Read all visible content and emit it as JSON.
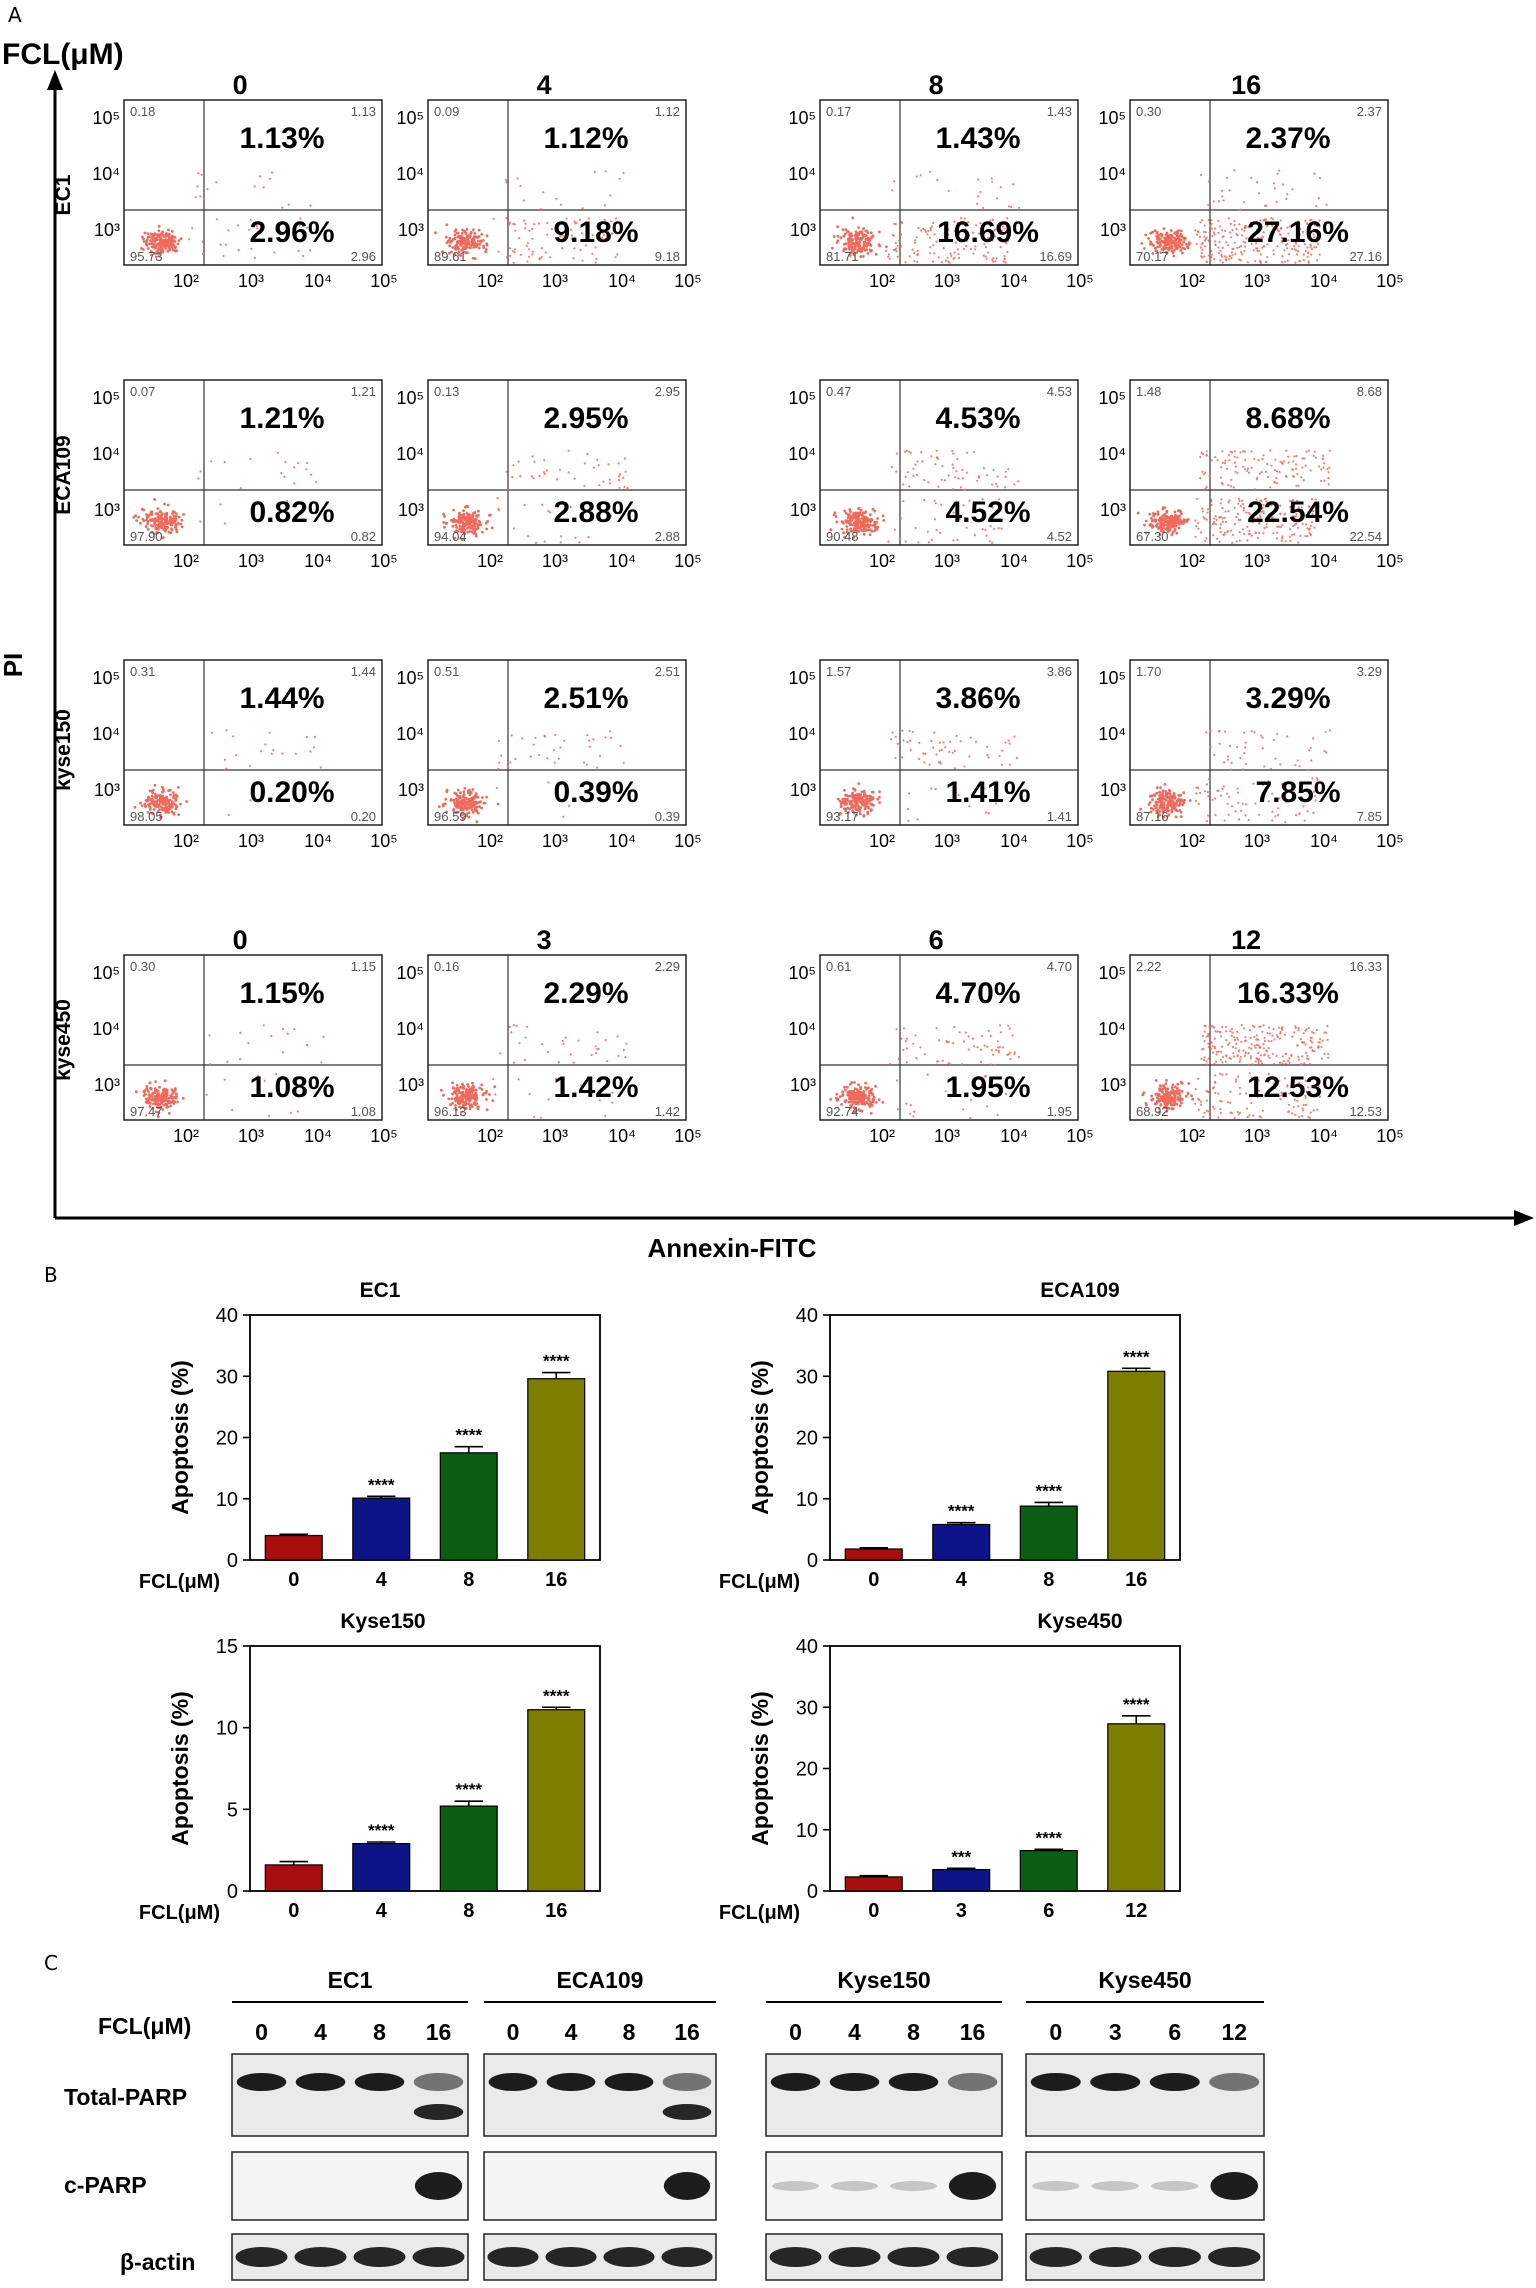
{
  "panels": {
    "a": "A",
    "b": "B",
    "c": "C"
  },
  "colors": {
    "dots": "#f06a5c",
    "bar0": "#a80e0e",
    "bar1": "#0c1487",
    "bar2": "#0b5d12",
    "bar3": "#7d7d00",
    "axis": "#000000"
  },
  "panel_a": {
    "top_label": "FCL(μM)",
    "y_axis_label": "PI",
    "x_axis_label": "Annexin-FITC",
    "tick_labels": [
      "10²",
      "10³",
      "10⁴",
      "10⁵"
    ],
    "rows": [
      {
        "cell": "EC1",
        "concentrations": [
          "0",
          "4",
          "8",
          "16"
        ],
        "plots": [
          {
            "ul": "0.18",
            "ur": "1.13",
            "ll": "95.73",
            "lr": "2.96",
            "upper": "1.13%",
            "lower": "2.96%"
          },
          {
            "ul": "0.09",
            "ur": "1.12",
            "ll": "89.61",
            "lr": "9.18",
            "upper": "1.12%",
            "lower": "9.18%"
          },
          {
            "ul": "0.17",
            "ur": "1.43",
            "ll": "81.71",
            "lr": "16.69",
            "upper": "1.43%",
            "lower": "16.69%"
          },
          {
            "ul": "0.30",
            "ur": "2.37",
            "ll": "70.17",
            "lr": "27.16",
            "upper": "2.37%",
            "lower": "27.16%"
          }
        ]
      },
      {
        "cell": "ECA109",
        "concentrations": [
          "",
          "",
          "",
          ""
        ],
        "plots": [
          {
            "ul": "0.07",
            "ur": "1.21",
            "ll": "97.90",
            "lr": "0.82",
            "upper": "1.21%",
            "lower": "0.82%"
          },
          {
            "ul": "0.13",
            "ur": "2.95",
            "ll": "94.04",
            "lr": "2.88",
            "upper": "2.95%",
            "lower": "2.88%"
          },
          {
            "ul": "0.47",
            "ur": "4.53",
            "ll": "90.48",
            "lr": "4.52",
            "upper": "4.53%",
            "lower": "4.52%"
          },
          {
            "ul": "1.48",
            "ur": "8.68",
            "ll": "67.30",
            "lr": "22.54",
            "upper": "8.68%",
            "lower": "22.54%"
          }
        ]
      },
      {
        "cell": "kyse150",
        "concentrations": [
          "",
          "",
          "",
          ""
        ],
        "plots": [
          {
            "ul": "0.31",
            "ur": "1.44",
            "ll": "98.05",
            "lr": "0.20",
            "upper": "1.44%",
            "lower": "0.20%"
          },
          {
            "ul": "0.51",
            "ur": "2.51",
            "ll": "96.59",
            "lr": "0.39",
            "upper": "2.51%",
            "lower": "0.39%"
          },
          {
            "ul": "1.57",
            "ur": "3.86",
            "ll": "93.17",
            "lr": "1.41",
            "upper": "3.86%",
            "lower": "1.41%"
          },
          {
            "ul": "1.70",
            "ur": "3.29",
            "ll": "87.16",
            "lr": "7.85",
            "upper": "3.29%",
            "lower": "7.85%"
          }
        ]
      },
      {
        "cell": "kyse450",
        "concentrations": [
          "0",
          "3",
          "6",
          "12"
        ],
        "plots": [
          {
            "ul": "0.30",
            "ur": "1.15",
            "ll": "97.47",
            "lr": "1.08",
            "upper": "1.15%",
            "lower": "1.08%"
          },
          {
            "ul": "0.16",
            "ur": "2.29",
            "ll": "96.13",
            "lr": "1.42",
            "upper": "2.29%",
            "lower": "1.42%"
          },
          {
            "ul": "0.61",
            "ur": "4.70",
            "ll": "92.74",
            "lr": "1.95",
            "upper": "4.70%",
            "lower": "1.95%"
          },
          {
            "ul": "2.22",
            "ur": "16.33",
            "ll": "68.92",
            "lr": "12.53",
            "upper": "16.33%",
            "lower": "12.53%"
          }
        ]
      }
    ]
  },
  "chart_data": [
    {
      "type": "bar",
      "title": "EC1",
      "categories": [
        "0",
        "4",
        "8",
        "16"
      ],
      "values": [
        4.0,
        10.1,
        17.5,
        29.6
      ],
      "errors": [
        0.2,
        0.3,
        1.0,
        1.0
      ],
      "significance": [
        "",
        "****",
        "****",
        "****"
      ],
      "xlabel": "FCL(μM)",
      "ylabel": "Apoptosis (%)",
      "ylim": [
        0,
        40
      ],
      "yticks": [
        0,
        10,
        20,
        30,
        40
      ]
    },
    {
      "type": "bar",
      "title": "ECA109",
      "categories": [
        "0",
        "4",
        "8",
        "16"
      ],
      "values": [
        1.8,
        5.8,
        8.8,
        30.8
      ],
      "errors": [
        0.2,
        0.3,
        0.6,
        0.5
      ],
      "significance": [
        "",
        "****",
        "****",
        "****"
      ],
      "xlabel": "FCL(μM)",
      "ylabel": "Apoptosis (%)",
      "ylim": [
        0,
        40
      ],
      "yticks": [
        0,
        10,
        20,
        30,
        40
      ]
    },
    {
      "type": "bar",
      "title": "Kyse150",
      "categories": [
        "0",
        "4",
        "8",
        "16"
      ],
      "values": [
        1.6,
        2.9,
        5.2,
        11.1
      ],
      "errors": [
        0.2,
        0.1,
        0.3,
        0.15
      ],
      "significance": [
        "",
        "****",
        "****",
        "****"
      ],
      "xlabel": "FCL(μM)",
      "ylabel": "Apoptosis (%)",
      "ylim": [
        0,
        15
      ],
      "yticks": [
        0,
        5,
        10,
        15
      ]
    },
    {
      "type": "bar",
      "title": "Kyse450",
      "categories": [
        "0",
        "3",
        "6",
        "12"
      ],
      "values": [
        2.3,
        3.5,
        6.6,
        27.3
      ],
      "errors": [
        0.2,
        0.2,
        0.2,
        1.3
      ],
      "significance": [
        "",
        "***",
        "****",
        "****"
      ],
      "xlabel": "FCL(μM)",
      "ylabel": "Apoptosis (%)",
      "ylim": [
        0,
        40
      ],
      "yticks": [
        0,
        10,
        20,
        30,
        40
      ]
    }
  ],
  "panel_c": {
    "row_label": "FCL(μM)",
    "groups": [
      {
        "name": "EC1",
        "lanes": [
          "0",
          "4",
          "8",
          "16"
        ]
      },
      {
        "name": "ECA109",
        "lanes": [
          "0",
          "4",
          "8",
          "16"
        ]
      },
      {
        "name": "Kyse150",
        "lanes": [
          "0",
          "4",
          "8",
          "16"
        ]
      },
      {
        "name": "Kyse450",
        "lanes": [
          "0",
          "3",
          "6",
          "12"
        ]
      }
    ],
    "blots": [
      "Total-PARP",
      "c-PARP",
      "β-actin"
    ]
  }
}
